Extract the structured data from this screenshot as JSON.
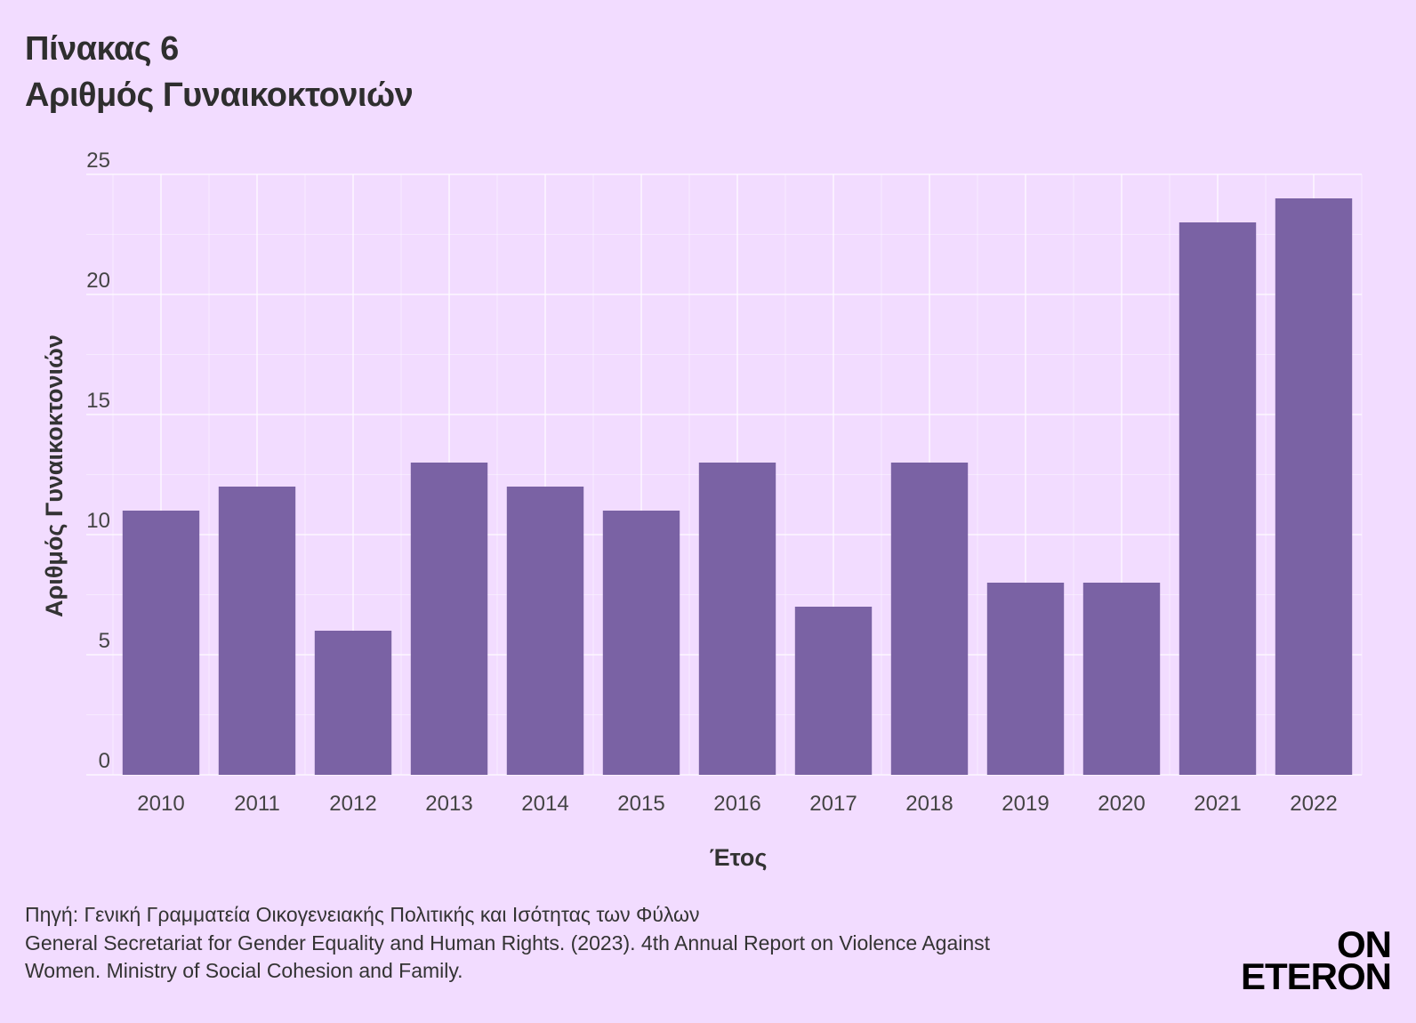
{
  "header": {
    "title_line1": "Πίνακας 6",
    "title_line2": "Αριθμός Γυναικοκτονιών"
  },
  "chart_data": {
    "type": "bar",
    "categories": [
      "2010",
      "2011",
      "2012",
      "2013",
      "2014",
      "2015",
      "2016",
      "2017",
      "2018",
      "2019",
      "2020",
      "2021",
      "2022"
    ],
    "values": [
      11,
      12,
      6,
      13,
      12,
      11,
      13,
      7,
      13,
      8,
      8,
      23,
      24
    ],
    "xlabel": "Έτος",
    "ylabel": "Αριθμός Γυναικοκτονιών",
    "ylim": [
      0,
      25
    ],
    "yticks": [
      0,
      5,
      10,
      15,
      20,
      25
    ],
    "grid": true,
    "bar_color": "#7a62a4",
    "background": "#f2dcff"
  },
  "footer": {
    "source_line1": "Πηγή: Γενική Γραμματεία Οικογενειακής Πολιτικής και Ισότητας των Φύλων",
    "source_line2": "General Secretariat for Gender Equality and Human Rights. (2023). 4th Annual Report on Violence Against",
    "source_line3": "Women. Ministry of Social Cohesion and Family.",
    "logo_line1": "ON",
    "logo_line2": "ETERON"
  }
}
